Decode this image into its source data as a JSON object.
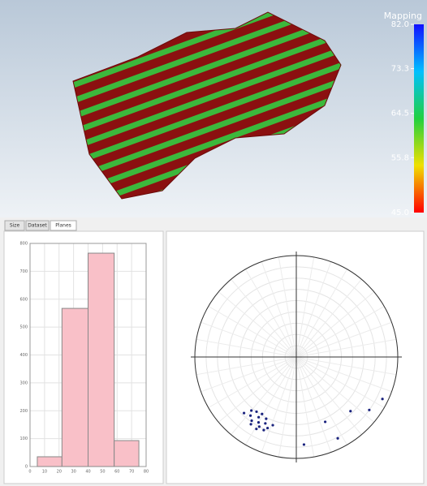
{
  "view3d": {
    "legend_title": "Mapping",
    "clim": [
      45,
      82
    ],
    "legend_ticks": [
      {
        "value": 82,
        "label": "82.0"
      },
      {
        "value": 73.3,
        "label": "73.3"
      },
      {
        "value": 64.5,
        "label": "64.5"
      },
      {
        "value": 55.8,
        "label": "55.8"
      },
      {
        "value": 45,
        "label": "45.0"
      }
    ]
  },
  "tabs": [
    "Size",
    "Dataset",
    "Planes"
  ],
  "chart_data": [
    {
      "type": "histogram",
      "bins": [
        5,
        22,
        40,
        58,
        75
      ],
      "counts": [
        35,
        567,
        765,
        93
      ],
      "color": "#f9c0c8",
      "xlim": [
        0,
        80
      ],
      "xticks": [
        0,
        10,
        20,
        30,
        40,
        50,
        60,
        70,
        80
      ],
      "ylim": [
        0,
        800
      ],
      "yticks": [
        0,
        100,
        200,
        300,
        400,
        500,
        600,
        700,
        800
      ],
      "grid": true
    },
    {
      "type": "stereonet",
      "color": "#1a237e",
      "trend": [
        210,
        205,
        215,
        212,
        208,
        218,
        202,
        220,
        206,
        214,
        199,
        223,
        211,
        209,
        216,
        204,
        156,
        135,
        126,
        116,
        175,
        153
      ],
      "plunge": [
        23,
        25,
        21,
        27,
        20,
        24,
        22,
        28,
        29,
        18,
        26,
        22,
        31,
        17,
        30,
        19,
        27,
        22,
        10,
        5,
        12,
        9
      ]
    }
  ]
}
